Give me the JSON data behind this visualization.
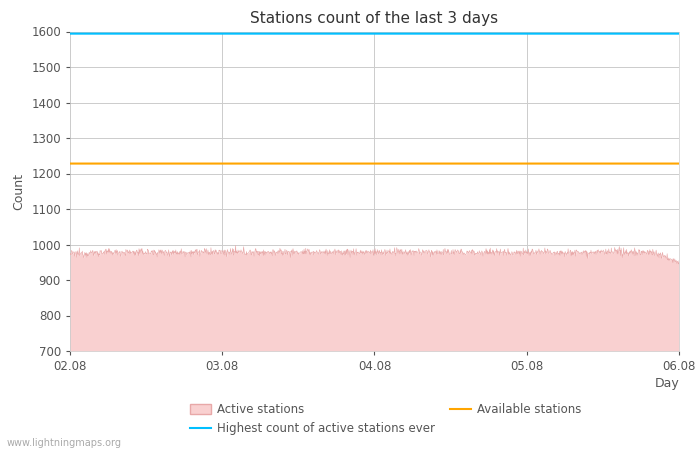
{
  "title": "Stations count of the last 3 days",
  "xlabel": "Day",
  "ylabel": "Count",
  "ylim": [
    700,
    1600
  ],
  "yticks": [
    700,
    800,
    900,
    1000,
    1100,
    1200,
    1300,
    1400,
    1500,
    1600
  ],
  "xtick_positions": [
    0,
    72,
    144,
    216,
    288
  ],
  "xtick_labels": [
    "02.08",
    "03.08",
    "04.08",
    "05.08",
    "06.08"
  ],
  "active_stations_mean": 978,
  "active_stations_noise": 5,
  "available_stations_level": 1228,
  "highest_ever_level": 1594,
  "active_fill_color": "#f9d0d0",
  "active_line_color": "#e8a8a8",
  "available_color": "#FFA500",
  "highest_color": "#00BFFF",
  "background_color": "#ffffff",
  "grid_color": "#cccccc",
  "title_fontsize": 11,
  "axis_fontsize": 9,
  "tick_fontsize": 8.5,
  "legend_fontsize": 8.5,
  "watermark": "www.lightningmaps.org",
  "n_points": 1440
}
